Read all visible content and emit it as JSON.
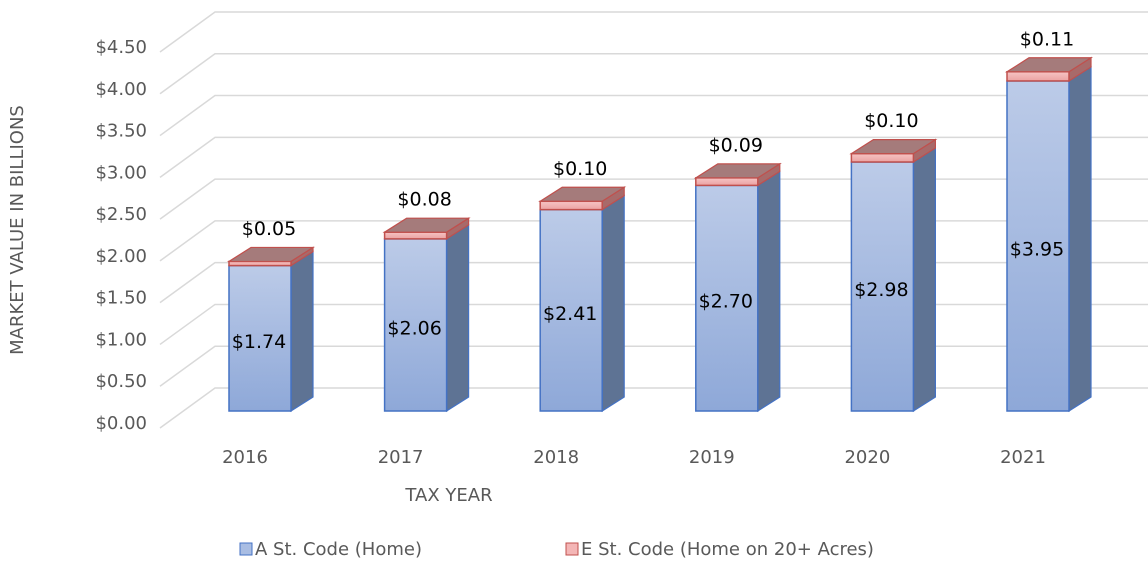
{
  "chart_data": {
    "type": "bar3d_stacked",
    "y_label": "MARKET VALUE IN BILLIONS",
    "x_label": "TAX YEAR",
    "categories": [
      "2016",
      "2017",
      "2018",
      "2019",
      "2020",
      "2021"
    ],
    "series": [
      {
        "name": "A St. Code (Home)",
        "color": "#8faadc",
        "values": [
          1.74,
          2.06,
          2.41,
          2.7,
          2.98,
          3.95
        ],
        "value_labels": [
          "$1.74",
          "$2.06",
          "$2.41",
          "$2.70",
          "$2.98",
          "$3.95"
        ]
      },
      {
        "name": "E St. Code (Home on 20+ Acres)",
        "color": "#f4b6b6",
        "values": [
          0.05,
          0.08,
          0.1,
          0.09,
          0.1,
          0.11
        ],
        "value_labels": [
          "$0.05",
          "$0.08",
          "$0.10",
          "$0.09",
          "$0.10",
          "$0.11"
        ]
      }
    ],
    "ylim": [
      0,
      4.5
    ],
    "yticks": [
      {
        "value": 0,
        "label": "$0.00"
      },
      {
        "value": 0.5,
        "label": "$0.50"
      },
      {
        "value": 1,
        "label": "$1.00"
      },
      {
        "value": 1.5,
        "label": "$1.50"
      },
      {
        "value": 2,
        "label": "$2.00"
      },
      {
        "value": 2.5,
        "label": "$2.50"
      },
      {
        "value": 3,
        "label": "$3.00"
      },
      {
        "value": 3.5,
        "label": "$3.50"
      },
      {
        "value": 4,
        "label": "$4.00"
      },
      {
        "value": 4.5,
        "label": "$4.50"
      }
    ],
    "grid": true,
    "legend": "bottom"
  }
}
